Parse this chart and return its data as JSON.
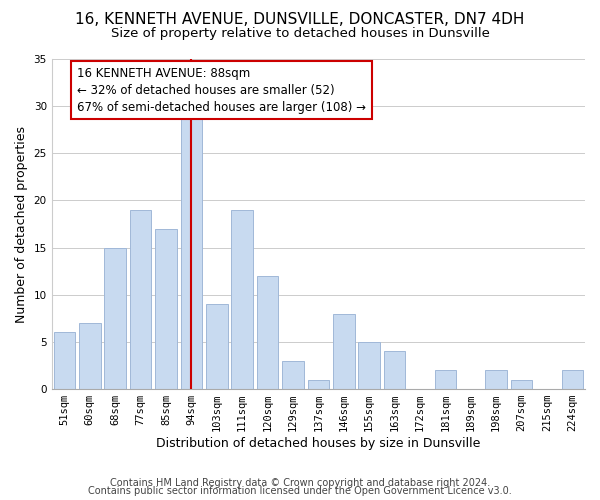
{
  "title": "16, KENNETH AVENUE, DUNSVILLE, DONCASTER, DN7 4DH",
  "subtitle": "Size of property relative to detached houses in Dunsville",
  "xlabel": "Distribution of detached houses by size in Dunsville",
  "ylabel": "Number of detached properties",
  "bar_labels": [
    "51sqm",
    "60sqm",
    "68sqm",
    "77sqm",
    "85sqm",
    "94sqm",
    "103sqm",
    "111sqm",
    "120sqm",
    "129sqm",
    "137sqm",
    "146sqm",
    "155sqm",
    "163sqm",
    "172sqm",
    "181sqm",
    "189sqm",
    "198sqm",
    "207sqm",
    "215sqm",
    "224sqm"
  ],
  "bar_heights": [
    6,
    7,
    15,
    19,
    17,
    29,
    9,
    19,
    12,
    3,
    1,
    8,
    5,
    4,
    0,
    2,
    0,
    2,
    1,
    0,
    2
  ],
  "bar_color": "#c8daf0",
  "bar_edge_color": "#a0b8d8",
  "vline_x_idx": 5,
  "vline_color": "#cc0000",
  "annotation_line1": "16 KENNETH AVENUE: 88sqm",
  "annotation_line2": "← 32% of detached houses are smaller (52)",
  "annotation_line3": "67% of semi-detached houses are larger (108) →",
  "annotation_box_edgecolor": "#cc0000",
  "annotation_box_facecolor": "#ffffff",
  "ylim": [
    0,
    35
  ],
  "yticks": [
    0,
    5,
    10,
    15,
    20,
    25,
    30,
    35
  ],
  "footer_line1": "Contains HM Land Registry data © Crown copyright and database right 2024.",
  "footer_line2": "Contains public sector information licensed under the Open Government Licence v3.0.",
  "title_fontsize": 11,
  "subtitle_fontsize": 9.5,
  "axis_label_fontsize": 9,
  "tick_fontsize": 7.5,
  "annotation_fontsize": 8.5,
  "footer_fontsize": 7
}
